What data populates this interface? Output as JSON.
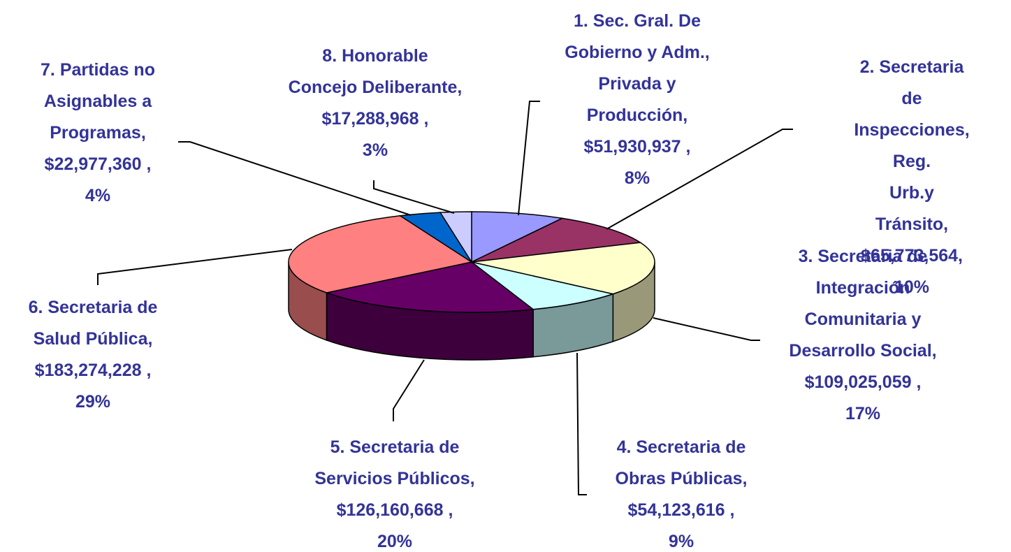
{
  "chart_data": {
    "type": "pie3d",
    "categories": [
      "1. Sec. Gral. De\nGobierno y Adm.,\nPrivada y\nProducción,",
      "2. Secretaria de\nInspecciones, Reg.\nUrb.y Tránsito,",
      "3. Secretaria de\nIntegración\nComunitaria y\nDesarrollo Social,",
      "4. Secretaria de\nObras Públicas,",
      "5. Secretaria de\nServicios Públicos,",
      "6. Secretaria de\nSalud Pública,",
      "7. Partidas no\nAsignables a\nProgramas,",
      "8. Honorable\nConcejo Deliberante,"
    ],
    "values": [
      51930937,
      65773564,
      109025059,
      54123616,
      126160668,
      183274228,
      22977360,
      17288968
    ],
    "value_labels": [
      "$51,930,937 ,",
      "$65,773,564,",
      "$109,025,059 ,",
      "$54,123,616 ,",
      "$126,160,668 ,",
      "$183,274,228 ,",
      "$22,977,360 ,",
      "$17,288,968 ,"
    ],
    "percent_labels": [
      "8%",
      "10%",
      "17%",
      "9%",
      "20%",
      "29%",
      "4%",
      "3%"
    ],
    "colors": [
      "#9999ff",
      "#993366",
      "#ffffcc",
      "#ccffff",
      "#660066",
      "#ff8080",
      "#0066cc",
      "#ccccff"
    ]
  }
}
